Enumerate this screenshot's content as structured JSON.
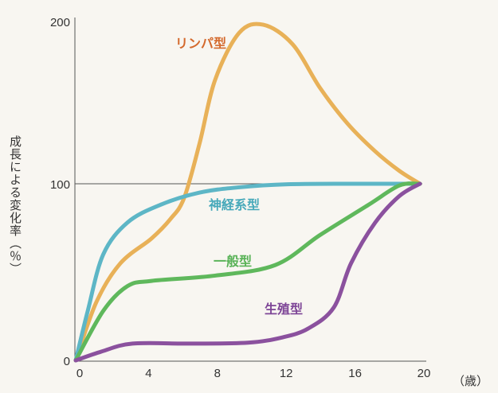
{
  "chart_data": {
    "type": "line",
    "title": "",
    "xlabel": "",
    "x_unit": "（歳）",
    "ylabel": "成長による変化率（％）",
    "xlim": [
      0,
      20
    ],
    "ylim": [
      0,
      200
    ],
    "x_ticks": [
      "0",
      "4",
      "8",
      "12",
      "16",
      "20"
    ],
    "y_ticks": [
      "0",
      "100",
      "200"
    ],
    "reference_line": 100,
    "grid": false,
    "series": [
      {
        "name": "リンパ型",
        "color": "#e8b158",
        "label_color": "#d4692c",
        "points": [
          [
            0,
            0
          ],
          [
            1.2,
            33
          ],
          [
            2.6,
            55
          ],
          [
            4.4,
            69
          ],
          [
            5.5,
            80
          ],
          [
            6.3,
            92
          ],
          [
            7.2,
            125
          ],
          [
            8.1,
            164
          ],
          [
            9.5,
            193
          ],
          [
            10.9,
            198
          ],
          [
            12.6,
            186
          ],
          [
            14.2,
            159
          ],
          [
            15.8,
            137
          ],
          [
            17.4,
            120
          ],
          [
            18.8,
            108
          ],
          [
            20,
            100
          ]
        ]
      },
      {
        "name": "神経系型",
        "color": "#5db6c6",
        "label_color": "#47a9ba",
        "points": [
          [
            0,
            0
          ],
          [
            0.7,
            28
          ],
          [
            1.6,
            60
          ],
          [
            3,
            78
          ],
          [
            4.9,
            88
          ],
          [
            7.2,
            95
          ],
          [
            9.5,
            98
          ],
          [
            12.3,
            99.7
          ],
          [
            16,
            100
          ],
          [
            20,
            100
          ]
        ]
      },
      {
        "name": "一般型",
        "color": "#5fb85c",
        "label_color": "#58b256",
        "points": [
          [
            0,
            0
          ],
          [
            1.6,
            28
          ],
          [
            3,
            42
          ],
          [
            4.4,
            45
          ],
          [
            8.1,
            48
          ],
          [
            11.6,
            54
          ],
          [
            14.2,
            71
          ],
          [
            17,
            88
          ],
          [
            18.8,
            99
          ],
          [
            20,
            100
          ]
        ]
      },
      {
        "name": "生殖型",
        "color": "#8b519e",
        "label_color": "#7e4697",
        "points": [
          [
            0,
            0
          ],
          [
            1.5,
            5
          ],
          [
            3.3,
            9.5
          ],
          [
            6.7,
            9.5
          ],
          [
            10,
            10
          ],
          [
            12,
            13
          ],
          [
            13.5,
            18
          ],
          [
            15,
            30
          ],
          [
            16,
            55
          ],
          [
            17.4,
            78
          ],
          [
            18.8,
            93
          ],
          [
            20,
            100
          ]
        ]
      }
    ]
  }
}
